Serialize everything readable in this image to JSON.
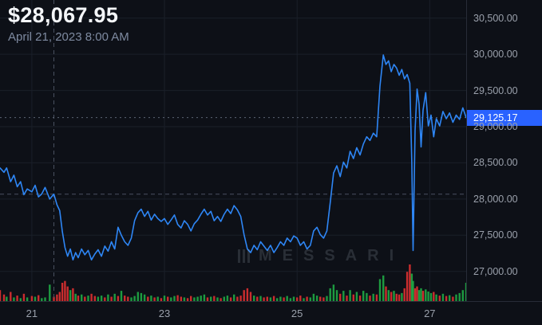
{
  "header": {
    "price": "$28,067.95",
    "date": "April 21, 2023 8:00 AM"
  },
  "watermark": {
    "text": "MESSARI"
  },
  "colors": {
    "background": "#0d1017",
    "accent_badge": "#2962ff",
    "axis_text": "#9aa0ab",
    "border": "#272c38"
  },
  "chart_data": {
    "type": "line",
    "title": "$28,067.95",
    "subtitle": "April 21, 2023 8:00 AM",
    "x_unit": "day of April 2023",
    "xlim": [
      20.52,
      27.55
    ],
    "ylim": [
      26590,
      30750
    ],
    "grid": "faint",
    "legend": "none",
    "line_color": "#2e86f5",
    "grid_color": "#1a1f29",
    "crosshair_color": "#4a5160",
    "last_price_line_color": "#5c6474",
    "volume_colors": {
      "up": "#1fab45",
      "down": "#e03131"
    },
    "x_ticks": [
      {
        "value": 21,
        "label": "21"
      },
      {
        "value": 23,
        "label": "23"
      },
      {
        "value": 25,
        "label": "25"
      },
      {
        "value": 27,
        "label": "27"
      }
    ],
    "y_ticks": [
      {
        "value": 30500,
        "label": "30,500.00"
      },
      {
        "value": 30000,
        "label": "30,000.00"
      },
      {
        "value": 29500,
        "label": "29,500.00"
      },
      {
        "value": 29000,
        "label": "29,000.00"
      },
      {
        "value": 28500,
        "label": "28,500.00"
      },
      {
        "value": 28000,
        "label": "28,000.00"
      },
      {
        "value": 27500,
        "label": "27,500.00"
      },
      {
        "value": 27000,
        "label": "27,000.00"
      }
    ],
    "last_price": {
      "value": 29125.17,
      "label": "29,125.17"
    },
    "crosshair": {
      "x": 21.333,
      "y": 28067.95
    },
    "price_points": [
      [
        20.52,
        28430
      ],
      [
        20.58,
        28370
      ],
      [
        20.62,
        28430
      ],
      [
        20.68,
        28240
      ],
      [
        20.73,
        28330
      ],
      [
        20.78,
        28170
      ],
      [
        20.83,
        28240
      ],
      [
        20.88,
        28060
      ],
      [
        20.93,
        28140
      ],
      [
        21.0,
        28100
      ],
      [
        21.05,
        28190
      ],
      [
        21.1,
        28030
      ],
      [
        21.15,
        28070
      ],
      [
        21.2,
        28160
      ],
      [
        21.27,
        28000
      ],
      [
        21.333,
        28067.95
      ],
      [
        21.38,
        27920
      ],
      [
        21.42,
        27840
      ],
      [
        21.46,
        27550
      ],
      [
        21.5,
        27330
      ],
      [
        21.54,
        27210
      ],
      [
        21.58,
        27310
      ],
      [
        21.62,
        27160
      ],
      [
        21.66,
        27260
      ],
      [
        21.7,
        27190
      ],
      [
        21.75,
        27310
      ],
      [
        21.8,
        27230
      ],
      [
        21.85,
        27290
      ],
      [
        21.9,
        27160
      ],
      [
        21.95,
        27240
      ],
      [
        22.0,
        27300
      ],
      [
        22.05,
        27210
      ],
      [
        22.1,
        27350
      ],
      [
        22.15,
        27280
      ],
      [
        22.2,
        27410
      ],
      [
        22.25,
        27310
      ],
      [
        22.3,
        27610
      ],
      [
        22.35,
        27500
      ],
      [
        22.4,
        27410
      ],
      [
        22.45,
        27360
      ],
      [
        22.5,
        27460
      ],
      [
        22.55,
        27700
      ],
      [
        22.6,
        27810
      ],
      [
        22.65,
        27860
      ],
      [
        22.7,
        27760
      ],
      [
        22.75,
        27830
      ],
      [
        22.8,
        27710
      ],
      [
        22.85,
        27790
      ],
      [
        22.9,
        27730
      ],
      [
        22.95,
        27690
      ],
      [
        23.0,
        27730
      ],
      [
        23.05,
        27650
      ],
      [
        23.1,
        27710
      ],
      [
        23.15,
        27780
      ],
      [
        23.2,
        27650
      ],
      [
        23.25,
        27600
      ],
      [
        23.3,
        27700
      ],
      [
        23.35,
        27650
      ],
      [
        23.4,
        27560
      ],
      [
        23.45,
        27660
      ],
      [
        23.5,
        27710
      ],
      [
        23.55,
        27790
      ],
      [
        23.6,
        27860
      ],
      [
        23.65,
        27780
      ],
      [
        23.7,
        27830
      ],
      [
        23.75,
        27700
      ],
      [
        23.8,
        27760
      ],
      [
        23.85,
        27690
      ],
      [
        23.9,
        27790
      ],
      [
        23.95,
        27860
      ],
      [
        24.0,
        27800
      ],
      [
        24.05,
        27910
      ],
      [
        24.1,
        27850
      ],
      [
        24.15,
        27760
      ],
      [
        24.2,
        27510
      ],
      [
        24.25,
        27310
      ],
      [
        24.3,
        27260
      ],
      [
        24.35,
        27360
      ],
      [
        24.4,
        27300
      ],
      [
        24.45,
        27410
      ],
      [
        24.5,
        27350
      ],
      [
        24.55,
        27290
      ],
      [
        24.6,
        27360
      ],
      [
        24.65,
        27260
      ],
      [
        24.7,
        27330
      ],
      [
        24.75,
        27410
      ],
      [
        24.8,
        27360
      ],
      [
        24.85,
        27460
      ],
      [
        24.9,
        27410
      ],
      [
        24.95,
        27490
      ],
      [
        25.0,
        27460
      ],
      [
        25.05,
        27360
      ],
      [
        25.1,
        27410
      ],
      [
        25.15,
        27310
      ],
      [
        25.2,
        27360
      ],
      [
        25.25,
        27560
      ],
      [
        25.3,
        27610
      ],
      [
        25.35,
        27510
      ],
      [
        25.4,
        27460
      ],
      [
        25.45,
        27560
      ],
      [
        25.5,
        27950
      ],
      [
        25.55,
        28360
      ],
      [
        25.6,
        28460
      ],
      [
        25.65,
        28310
      ],
      [
        25.7,
        28510
      ],
      [
        25.75,
        28430
      ],
      [
        25.8,
        28660
      ],
      [
        25.85,
        28560
      ],
      [
        25.9,
        28710
      ],
      [
        25.95,
        28610
      ],
      [
        26.0,
        28760
      ],
      [
        26.05,
        28860
      ],
      [
        26.1,
        28810
      ],
      [
        26.15,
        28910
      ],
      [
        26.2,
        28860
      ],
      [
        26.25,
        29560
      ],
      [
        26.3,
        29990
      ],
      [
        26.34,
        29860
      ],
      [
        26.38,
        29910
      ],
      [
        26.42,
        29760
      ],
      [
        26.46,
        29860
      ],
      [
        26.5,
        29810
      ],
      [
        26.54,
        29710
      ],
      [
        26.58,
        29790
      ],
      [
        26.62,
        29660
      ],
      [
        26.66,
        29720
      ],
      [
        26.7,
        29600
      ],
      [
        26.73,
        28500
      ],
      [
        26.75,
        27290
      ],
      [
        26.78,
        28950
      ],
      [
        26.81,
        29520
      ],
      [
        26.84,
        29310
      ],
      [
        26.87,
        28720
      ],
      [
        26.9,
        29230
      ],
      [
        26.94,
        29470
      ],
      [
        26.98,
        29010
      ],
      [
        27.02,
        29160
      ],
      [
        27.06,
        28860
      ],
      [
        27.1,
        29110
      ],
      [
        27.15,
        29010
      ],
      [
        27.2,
        29210
      ],
      [
        27.25,
        29110
      ],
      [
        27.3,
        29190
      ],
      [
        27.35,
        29060
      ],
      [
        27.4,
        29160
      ],
      [
        27.45,
        29100
      ],
      [
        27.5,
        29260
      ],
      [
        27.55,
        29125.17
      ]
    ],
    "volume": [
      "30r",
      "18r",
      "12g",
      "25r",
      "10g",
      "15r",
      "8g",
      "20r",
      "10g",
      "14r",
      "12g",
      "16r",
      "8g",
      "10g",
      "45g",
      "12r",
      "18r",
      "25r",
      "50r",
      "55r",
      "40r",
      "30g",
      "35r",
      "20g",
      "15r",
      "18g",
      "12r",
      "15g",
      "20r",
      "14r",
      "12g",
      "15g",
      "10r",
      "18g",
      "12r",
      "20g",
      "14r",
      "28g",
      "15r",
      "12r",
      "10g",
      "14g",
      "25g",
      "22g",
      "18g",
      "12r",
      "15g",
      "10r",
      "12g",
      "8r",
      "15g",
      "12r",
      "10g",
      "14g",
      "16r",
      "12r",
      "10g",
      "8r",
      "14r",
      "10g",
      "12g",
      "15g",
      "18g",
      "10r",
      "12g",
      "14r",
      "10g",
      "8r",
      "12g",
      "15g",
      "10r",
      "18g",
      "12r",
      "15r",
      "30r",
      "35r",
      "25r",
      "15g",
      "12r",
      "14g",
      "10r",
      "12r",
      "10g",
      "14r",
      "8g",
      "12g",
      "10r",
      "14g",
      "8g",
      "12g",
      "10r",
      "15r",
      "8g",
      "12r",
      "10g",
      "20g",
      "15g",
      "12r",
      "10r",
      "14g",
      "35g",
      "45g",
      "30g",
      "20r",
      "28g",
      "15r",
      "30g",
      "18r",
      "25g",
      "15r",
      "28g",
      "22g",
      "15r",
      "20g",
      "18r",
      "60g",
      "70g",
      "40r",
      "30g",
      "25r",
      "28g",
      "20r",
      "18r",
      "22g",
      "35r",
      "80r",
      "100r",
      "75g",
      "55g",
      "35r",
      "40r",
      "30g",
      "35g",
      "28r",
      "32g",
      "26g",
      "22g",
      "25r",
      "18g",
      "15r",
      "20g",
      "14r",
      "16g",
      "12r",
      "18g",
      "22g",
      "30g",
      "50g"
    ]
  }
}
